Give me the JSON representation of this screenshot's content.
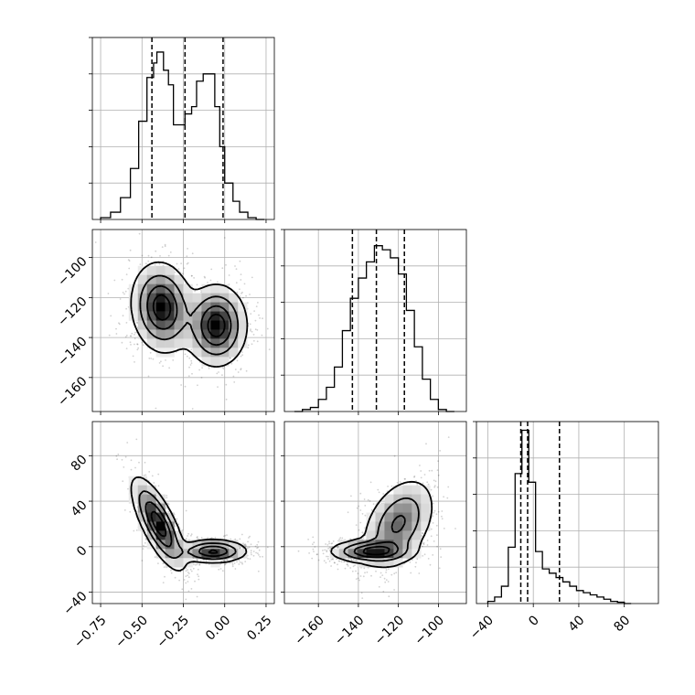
{
  "chart_data": {
    "type": "corner",
    "title": "",
    "grid": true,
    "parameters": [
      "",
      "",
      ""
    ],
    "axes": {
      "p0": {
        "lim": [
          -0.8,
          0.3
        ],
        "ticks": [
          -0.75,
          -0.5,
          -0.25,
          0.0,
          0.25
        ],
        "tick_labels": [
          "−0.75",
          "−0.50",
          "−0.25",
          "0.00",
          "0.25"
        ]
      },
      "p1": {
        "lim": [
          -177,
          -86
        ],
        "ticks": [
          -160,
          -140,
          -120,
          -100
        ],
        "tick_labels": [
          "−160",
          "−140",
          "−120",
          "−100"
        ]
      },
      "p2": {
        "lim": [
          -50,
          110
        ],
        "ticks": [
          -40,
          0,
          40,
          80
        ],
        "tick_labels": [
          "−40",
          "0",
          "40",
          "80"
        ]
      }
    },
    "histograms": [
      {
        "param": "p0",
        "bin_edges": [
          -0.75,
          -0.69,
          -0.63,
          -0.57,
          -0.52,
          -0.47,
          -0.43,
          -0.41,
          -0.37,
          -0.34,
          -0.31,
          -0.29,
          -0.24,
          -0.2,
          -0.17,
          -0.13,
          -0.1,
          -0.06,
          -0.03,
          0.0,
          0.05,
          0.09,
          0.14,
          0.19,
          0.24
        ],
        "counts": [
          0.5,
          2,
          6,
          14,
          27,
          39,
          43,
          46,
          41,
          37,
          26,
          26,
          29,
          31,
          38,
          40,
          40,
          31,
          20,
          10,
          5,
          2,
          0.5,
          0
        ],
        "quantiles": [
          -0.44,
          -0.24,
          -0.01
        ],
        "ylim": [
          0,
          50
        ]
      },
      {
        "param": "p1",
        "bin_edges": [
          -172,
          -168,
          -164,
          -160,
          -156,
          -152,
          -148,
          -144,
          -140,
          -136,
          -132,
          -128,
          -124,
          -120,
          -116,
          -112,
          -108,
          -104,
          -100,
          -96,
          -92
        ],
        "counts": [
          0,
          0.5,
          1,
          3,
          6,
          11,
          20,
          28,
          33,
          37,
          41,
          40,
          38,
          34,
          25,
          16,
          8,
          3,
          0.5,
          0
        ],
        "quantiles": [
          -143,
          -131,
          -117
        ],
        "ylim": [
          0,
          45
        ]
      },
      {
        "param": "p2",
        "bin_edges": [
          -40,
          -34,
          -28,
          -22,
          -16,
          -10,
          -4,
          2,
          8,
          14,
          20,
          26,
          32,
          38,
          44,
          50,
          56,
          62,
          68,
          74,
          80,
          86
        ],
        "counts": [
          0.5,
          1.5,
          4,
          13,
          30,
          40,
          28,
          12,
          8,
          7,
          6,
          5,
          4,
          3,
          2.5,
          2,
          1.5,
          1,
          0.5,
          0.3,
          0
        ],
        "quantiles": [
          -11,
          -5,
          23
        ],
        "ylim": [
          0,
          42
        ]
      }
    ],
    "pairs": [
      {
        "x": "p0",
        "y": "p1",
        "modes": [
          {
            "center": [
              -0.38,
              -125
            ],
            "sigma": [
              0.09,
              11
            ],
            "rho": -0.1,
            "weight": 1.0
          },
          {
            "center": [
              -0.05,
              -134
            ],
            "sigma": [
              0.09,
              10
            ],
            "rho": 0.0,
            "weight": 1.0
          }
        ]
      },
      {
        "x": "p0",
        "y": "p2",
        "modes": [
          {
            "center": [
              -0.4,
              20
            ],
            "sigma": [
              0.08,
              20
            ],
            "rho": -0.75,
            "weight": 0.8
          },
          {
            "center": [
              -0.07,
              -4
            ],
            "sigma": [
              0.1,
              5
            ],
            "rho": 0.0,
            "weight": 1.1
          }
        ]
      },
      {
        "x": "p1",
        "y": "p2",
        "modes": [
          {
            "center": [
              -134,
              -4
            ],
            "sigma": [
              10,
              5
            ],
            "rho": 0.0,
            "weight": 1.1
          },
          {
            "center": [
              -120,
              20
            ],
            "sigma": [
              9,
              20
            ],
            "rho": 0.4,
            "weight": 0.8
          }
        ]
      }
    ]
  }
}
